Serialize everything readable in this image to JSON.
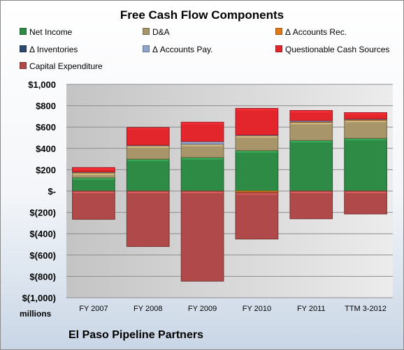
{
  "chart_data": {
    "type": "bar",
    "stacked": true,
    "title": "Free Cash Flow Components",
    "unit_label": "millions",
    "company": "El Paso Pipeline Partners",
    "categories": [
      "FY 2007",
      "FY 2008",
      "FY 2009",
      "FY 2010",
      "FY 2011",
      "TTM 3-2012"
    ],
    "ylim": [
      -1000,
      1000
    ],
    "yticks": [
      1000,
      800,
      600,
      400,
      200,
      0,
      -200,
      -400,
      -600,
      -800,
      -1000
    ],
    "ytick_labels": [
      "$1,000",
      "$800",
      "$600",
      "$400",
      "$200",
      "$-",
      "$(200)",
      "$(400)",
      "$(600)",
      "$(800)",
      "$(1,000)"
    ],
    "grid": true,
    "legend_position": "top",
    "series": [
      {
        "name": "Net Income",
        "color": "#2e8b46",
        "values": [
          125,
          300,
          315,
          380,
          475,
          495
        ]
      },
      {
        "name": "D&A",
        "color": "#a8966a",
        "values": [
          45,
          125,
          125,
          140,
          170,
          170
        ]
      },
      {
        "name": "Δ Accounts Rec.",
        "color": "#e07a18",
        "values": [
          5,
          0,
          0,
          -15,
          5,
          5
        ]
      },
      {
        "name": "Δ Inventories",
        "color": "#2c4a6e",
        "values": [
          0,
          0,
          0,
          0,
          0,
          0
        ]
      },
      {
        "name": "Δ Accounts Pay.",
        "color": "#8fa4c8",
        "values": [
          5,
          5,
          25,
          5,
          10,
          5
        ]
      },
      {
        "name": "Questionable Cash Sources",
        "color": "#e3262c",
        "values": [
          40,
          165,
          180,
          250,
          95,
          60
        ]
      },
      {
        "name": "Capital Expenditure",
        "color": "#b04a4a",
        "values": [
          -265,
          -520,
          -845,
          -435,
          -260,
          -215
        ]
      }
    ]
  }
}
